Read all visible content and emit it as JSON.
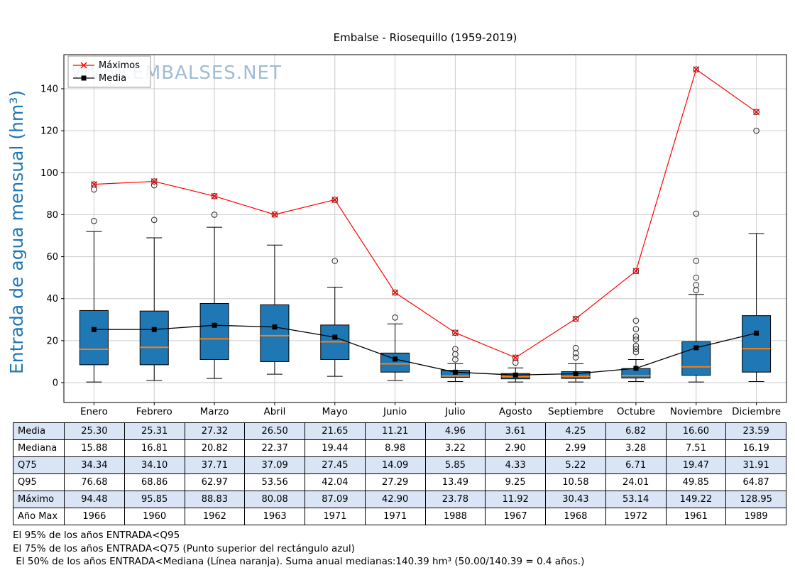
{
  "title": "Embalse - Riosequillo (1959-2019)",
  "watermark": "WWW.EMBALSES.NET",
  "y_axis_label": "Entrada de agua mensual (hm³)",
  "legend": {
    "maximos": "Máximos",
    "media": "Media"
  },
  "chart_data": {
    "type": "boxplot",
    "title": "Embalse - Riosequillo (1959-2019)",
    "ylabel": "Entrada de agua mensual (hm³)",
    "categories": [
      "Enero",
      "Febrero",
      "Marzo",
      "Abril",
      "Mayo",
      "Junio",
      "Julio",
      "Agosto",
      "Septiembre",
      "Octubre",
      "Noviembre",
      "Diciembre"
    ],
    "yticks": [
      0,
      20,
      40,
      60,
      80,
      100,
      120,
      140
    ],
    "ylim": [
      -9.5,
      156
    ],
    "grid": true,
    "legend_position": "upper-left",
    "series": [
      {
        "name": "Máximos",
        "type": "line",
        "marker": "x",
        "color": "#ff0000",
        "values": [
          94.48,
          95.85,
          88.83,
          80.08,
          87.09,
          42.9,
          23.78,
          11.92,
          30.43,
          53.14,
          149.22,
          128.95
        ]
      },
      {
        "name": "Media",
        "type": "line",
        "marker": "square",
        "color": "#000000",
        "values": [
          25.3,
          25.31,
          27.32,
          26.5,
          21.65,
          11.21,
          4.96,
          3.61,
          4.25,
          6.82,
          16.6,
          23.59
        ]
      }
    ],
    "boxes": {
      "median": [
        15.88,
        16.81,
        20.82,
        22.37,
        19.44,
        8.98,
        3.22,
        2.9,
        2.99,
        3.28,
        7.51,
        16.19
      ],
      "q75": [
        34.34,
        34.1,
        37.71,
        37.09,
        27.45,
        14.09,
        5.85,
        4.33,
        5.22,
        6.71,
        19.47,
        31.91
      ],
      "q95": [
        76.68,
        68.86,
        62.97,
        53.56,
        42.04,
        27.29,
        13.49,
        9.25,
        10.58,
        24.01,
        49.85,
        64.87
      ],
      "q25_est": [
        8.5,
        8.5,
        11,
        10,
        11,
        5,
        2.5,
        1.8,
        2,
        2.2,
        3.5,
        5
      ],
      "whisker_low_est": [
        0.3,
        1,
        2,
        4,
        3,
        1,
        0.5,
        0.3,
        0.3,
        0.5,
        0.3,
        0.5
      ],
      "whisker_high_est": [
        72,
        69,
        74,
        65.5,
        45.5,
        28,
        9,
        7,
        9,
        11,
        42,
        71
      ],
      "outliers_est": [
        [
          77,
          92
        ],
        [
          77.5,
          94
        ],
        [
          80
        ],
        [],
        [
          58
        ],
        [
          31
        ],
        [
          11,
          13.5,
          16
        ],
        [
          9.5
        ],
        [
          12,
          14,
          16.5
        ],
        [
          14.5,
          16,
          17.5,
          20.5,
          22,
          25.5,
          29.5
        ],
        [
          44,
          46.5,
          50,
          58,
          80.5
        ],
        [
          120
        ]
      ],
      "max_is_outlier": true
    },
    "colors": {
      "box_fill": "#1f77b4",
      "box_edge": "#000000",
      "median_line": "#ff7f0e",
      "max_line": "#ff0000",
      "media_line": "#000000",
      "grid": "#cccccc",
      "ylabel": "#1f77b4",
      "watermark": "#9fbcd6",
      "table_alt_row": "#d9e4f5"
    }
  },
  "table": {
    "row_headers": [
      "Media",
      "Mediana",
      "Q75",
      "Q95",
      "Máximo",
      "Año Max"
    ],
    "rows": [
      [
        "25.30",
        "25.31",
        "27.32",
        "26.50",
        "21.65",
        "11.21",
        "4.96",
        "3.61",
        "4.25",
        "6.82",
        "16.60",
        "23.59"
      ],
      [
        "15.88",
        "16.81",
        "20.82",
        "22.37",
        "19.44",
        "8.98",
        "3.22",
        "2.90",
        "2.99",
        "3.28",
        "7.51",
        "16.19"
      ],
      [
        "34.34",
        "34.10",
        "37.71",
        "37.09",
        "27.45",
        "14.09",
        "5.85",
        "4.33",
        "5.22",
        "6.71",
        "19.47",
        "31.91"
      ],
      [
        "76.68",
        "68.86",
        "62.97",
        "53.56",
        "42.04",
        "27.29",
        "13.49",
        "9.25",
        "10.58",
        "24.01",
        "49.85",
        "64.87"
      ],
      [
        "94.48",
        "95.85",
        "88.83",
        "80.08",
        "87.09",
        "42.90",
        "23.78",
        "11.92",
        "30.43",
        "53.14",
        "149.22",
        "128.95"
      ],
      [
        "1966",
        "1960",
        "1962",
        "1963",
        "1971",
        "1971",
        "1988",
        "1967",
        "1968",
        "1972",
        "1961",
        "1989"
      ]
    ]
  },
  "footnotes": [
    "El 95% de los años ENTRADA<Q95",
    "El 75% de los años ENTRADA<Q75 (Punto superior del rectángulo azul)",
    " El 50% de los años ENTRADA<Mediana (Línea naranja). Suma anual medianas:140.39 hm³ (50.00/140.39 = 0.4 años.)"
  ]
}
